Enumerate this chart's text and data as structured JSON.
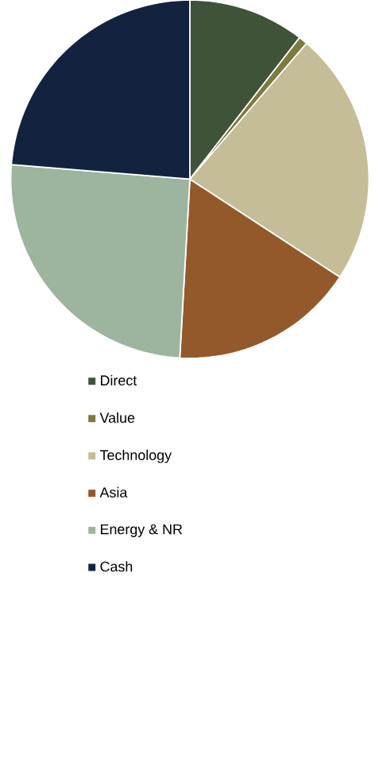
{
  "chart_data": {
    "type": "pie",
    "categories": [
      "Direct",
      "Value",
      "Technology",
      "Asia",
      "Energy & NR",
      "Cash"
    ],
    "values": [
      10.5,
      0.8,
      22.9,
      16.7,
      25.4,
      23.7
    ],
    "colors": [
      "#3f5339",
      "#7c7a3c",
      "#c5bd97",
      "#94592a",
      "#9db59f",
      "#13233f"
    ],
    "legend": "bottom"
  }
}
